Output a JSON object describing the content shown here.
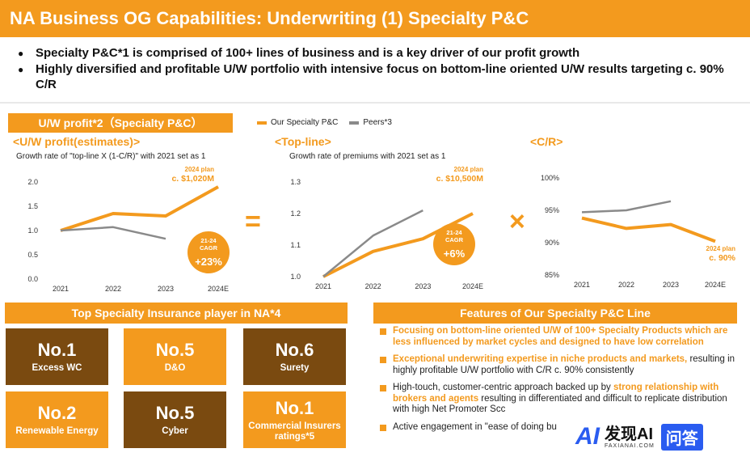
{
  "header": {
    "title": "NA Business OG Capabilities: Underwriting (1) Specialty P&C"
  },
  "bullets": [
    "Specialty P&C*1 is comprised of 100+ lines of business and is a key driver of our profit growth",
    "Highly diversified and profitable U/W portfolio with intensive focus on bottom-line oriented U/W results targeting c. 90% C/R"
  ],
  "uw_banner": "U/W profit*2（Specialty P&C）",
  "legend": {
    "ours": "Our Specialty P&C",
    "peers": "Peers*3"
  },
  "colors": {
    "orange": "#F39A1E",
    "gray": "#8A8A8A",
    "brown": "#7A4A10"
  },
  "operators": {
    "equals": "=",
    "times": "×"
  },
  "chart_data": [
    {
      "type": "line",
      "title": "<U/W profit(estimates)>",
      "subtitle": "Growth rate of \"top-line X (1-C/R)\" with 2021 set as 1",
      "categories": [
        "2021",
        "2022",
        "2023",
        "2024E"
      ],
      "yticks": [
        "0.0",
        "0.5",
        "1.0",
        "1.5",
        "2.0"
      ],
      "ylim": [
        0,
        2.0
      ],
      "series": [
        {
          "name": "Our Specialty P&C",
          "values": [
            1.0,
            1.35,
            1.3,
            1.9
          ]
        },
        {
          "name": "Peers",
          "values": [
            1.0,
            1.07,
            0.83,
            null
          ]
        }
      ],
      "plan_label": "2024 plan",
      "plan_value": "c. $1,020M",
      "cagr_label": "21-24\nCAGR",
      "cagr_value": "+23%"
    },
    {
      "type": "line",
      "title": "<Top-line>",
      "subtitle": "Growth rate of premiums with 2021 set as 1",
      "categories": [
        "2021",
        "2022",
        "2023",
        "2024E"
      ],
      "yticks": [
        "1.0",
        "1.1",
        "1.2",
        "1.3"
      ],
      "ylim": [
        1.0,
        1.3
      ],
      "series": [
        {
          "name": "Our Specialty P&C",
          "values": [
            1.0,
            1.08,
            1.12,
            1.2
          ]
        },
        {
          "name": "Peers",
          "values": [
            1.0,
            1.13,
            1.21,
            null
          ]
        }
      ],
      "plan_label": "2024 plan",
      "plan_value": "c. $10,500M",
      "cagr_label": "21-24\nCAGR",
      "cagr_value": "+6%"
    },
    {
      "type": "line",
      "title": "<C/R>",
      "subtitle": "",
      "categories": [
        "2021",
        "2022",
        "2023",
        "2024E"
      ],
      "yticks": [
        "85%",
        "90%",
        "95%",
        "100%"
      ],
      "ylim": [
        85,
        100
      ],
      "series": [
        {
          "name": "Our Specialty P&C",
          "values": [
            93.8,
            92.2,
            92.8,
            90.2
          ]
        },
        {
          "name": "Peers",
          "values": [
            94.7,
            95.0,
            96.4,
            null
          ]
        }
      ],
      "plan_label": "2024 plan",
      "plan_value": "c. 90%"
    }
  ],
  "top_player": {
    "banner": "Top Specialty Insurance player in NA*4",
    "tiles": [
      {
        "rank": "No.1",
        "label": "Excess WC"
      },
      {
        "rank": "No.5",
        "label": "D&O"
      },
      {
        "rank": "No.6",
        "label": "Surety"
      },
      {
        "rank": "No.2",
        "label": "Renewable Energy"
      },
      {
        "rank": "No.5",
        "label": "Cyber"
      },
      {
        "rank": "No.1",
        "label": "Commercial Insurers ratings*5"
      }
    ]
  },
  "features": {
    "banner": "Features of Our Specialty P&C Line",
    "items": [
      {
        "highlight": "Focusing on bottom-line oriented U/W of 100+ Specialty Products which are less influenced by market cycles and designed to have low correlation",
        "rest": ""
      },
      {
        "highlight": "Exceptional underwriting expertise in niche products and markets,",
        "rest": " resulting in highly profitable U/W portfolio with C/R c. 90% consistently"
      },
      {
        "pre": "High-touch, customer-centric approach backed up by ",
        "highlight": "strong relationship with brokers and agents",
        "rest": " resulting in differentiated and difficult to replicate distribution with high Net Promoter Scc"
      },
      {
        "pre": "Active engagement in \"ease of doing bu",
        "highlight": "",
        "rest": ""
      }
    ]
  },
  "watermark": {
    "logo": "AI",
    "name": "发现AI",
    "domain": "FAXIANAI.COM",
    "button": "问答"
  }
}
